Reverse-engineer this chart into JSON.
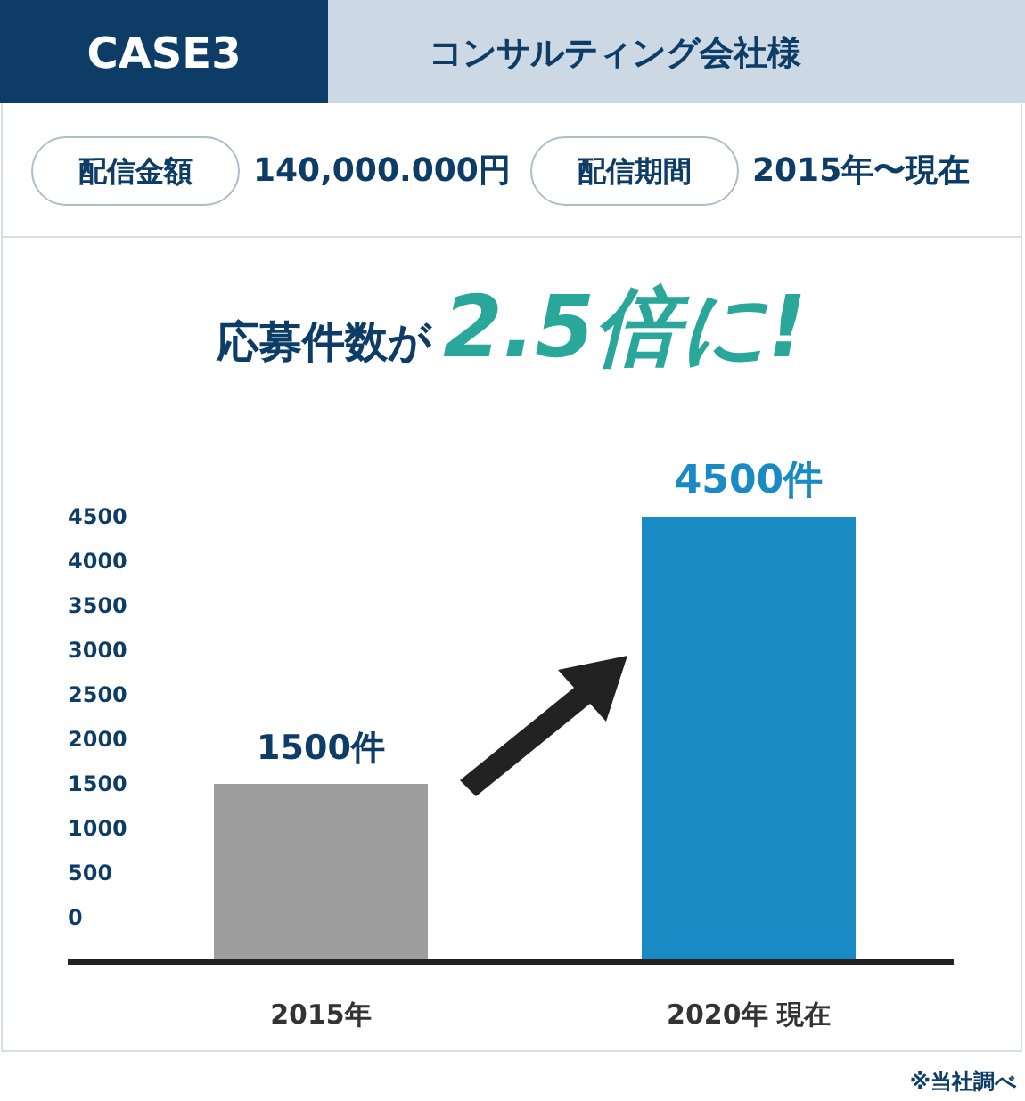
{
  "chart_data": {
    "type": "bar",
    "title": "応募件数が",
    "subtitle": "2.5倍に!",
    "categories": [
      "2015年",
      "2020年 現在"
    ],
    "values": [
      1500,
      4500
    ],
    "colors": [
      "#9e9e9e",
      "#1a8ac4"
    ],
    "value_labels": [
      "1500件",
      "4500件"
    ],
    "ylim": [
      0,
      4500
    ],
    "yticks": [
      0,
      500,
      1000,
      1500,
      2000,
      2500,
      3000,
      3500,
      4000,
      4500
    ],
    "grid": false,
    "annotations": [
      "CASE3",
      "コンサルティング会社様",
      "配信金額",
      "140,000.000円",
      "配信期間",
      "2015年〜現在",
      "※当社調べ"
    ]
  }
}
